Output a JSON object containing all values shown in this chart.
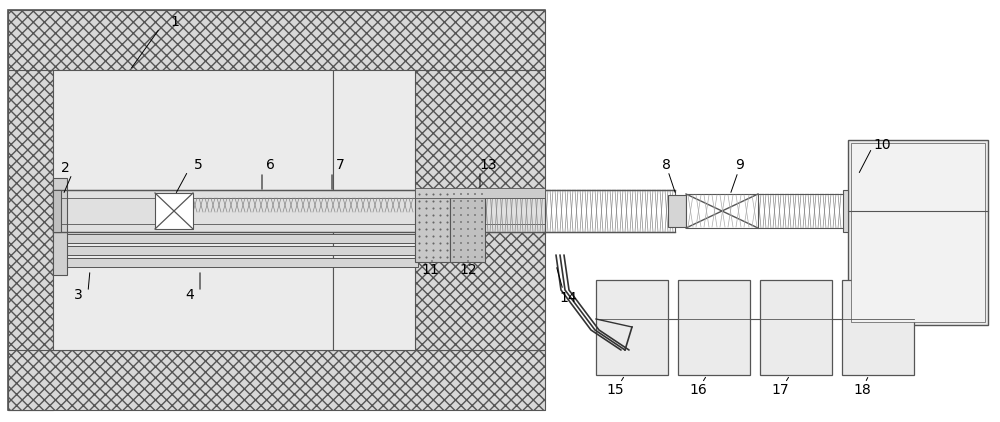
{
  "lc": "#555555",
  "label_fs": 10,
  "hatch_fc": "#d8d8d8",
  "plain_fc": "#ebebeb",
  "white": "#ffffff",
  "pipe_fc": "#e0e0e0",
  "dot_fc": "#aaaaaa"
}
